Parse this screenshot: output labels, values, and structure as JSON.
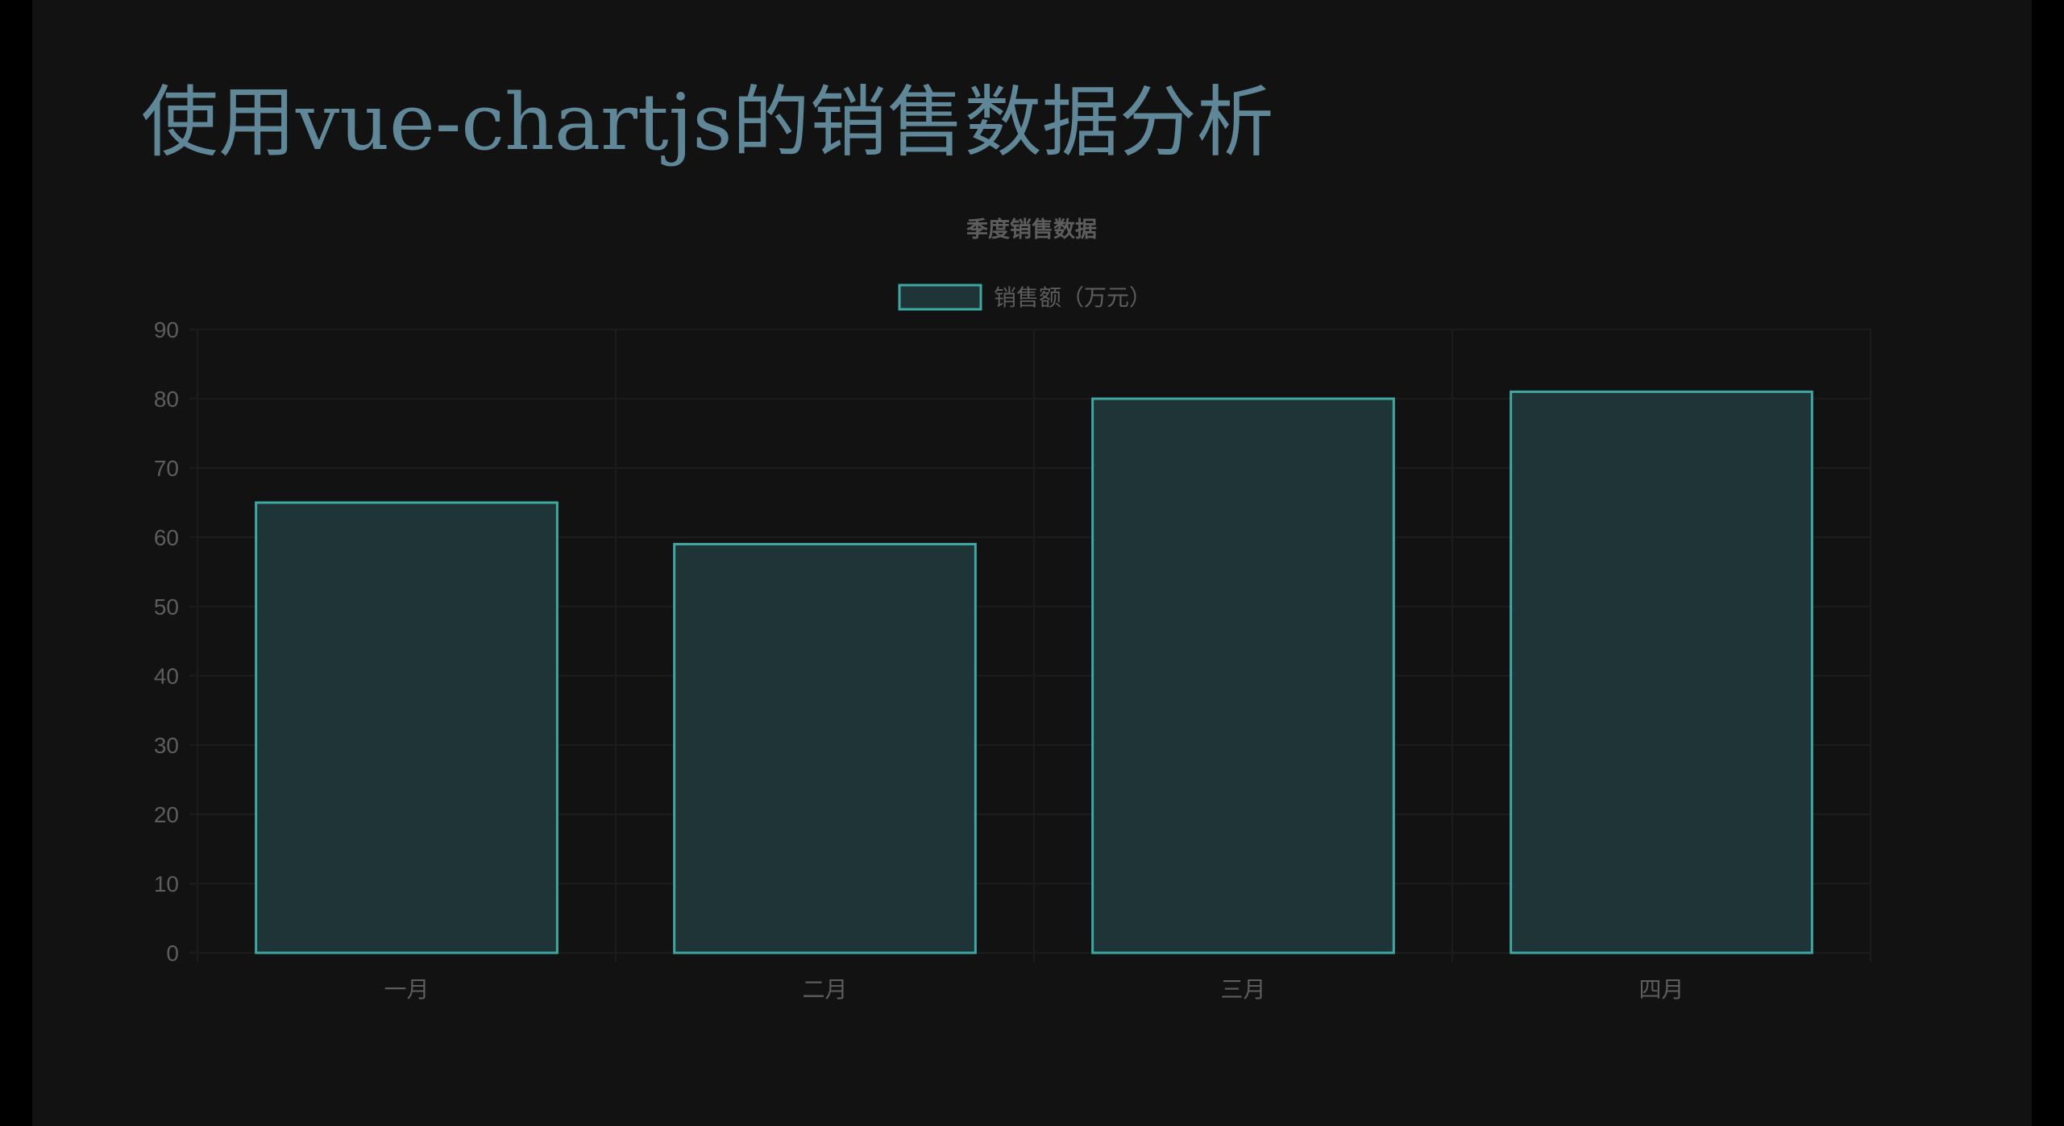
{
  "page": {
    "title": "使用vue-chartjs的销售数据分析"
  },
  "colors": {
    "background": "#121212",
    "title": "#5f8797",
    "bar_fill": "#1e3436",
    "bar_border": "#3fa7a4",
    "text": "#5d5d5d",
    "grid": "#1c1c1c"
  },
  "chart_data": {
    "type": "bar",
    "title": "季度销售数据",
    "categories": [
      "一月",
      "二月",
      "三月",
      "四月"
    ],
    "series": [
      {
        "name": "销售额（万元）",
        "values": [
          65,
          59,
          80,
          81
        ]
      }
    ],
    "ylim": [
      0,
      90
    ],
    "yticks": [
      0,
      10,
      20,
      30,
      40,
      50,
      60,
      70,
      80,
      90
    ],
    "legend": "top-center",
    "grid": true
  }
}
